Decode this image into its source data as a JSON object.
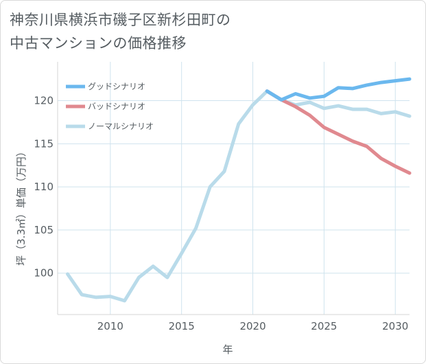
{
  "title": {
    "line1": "神奈川県横浜市磯子区新杉田町の",
    "line2": "中古マンションの価格推移"
  },
  "chart_data": {
    "type": "line",
    "xlabel": "年",
    "ylabel": "坪（3.3㎡）単価（万円）",
    "xlim": [
      2006.3,
      2031
    ],
    "ylim": [
      95.2,
      124.5
    ],
    "x_ticks": [
      2010,
      2015,
      2020,
      2025,
      2030
    ],
    "y_ticks": [
      100,
      105,
      110,
      115,
      120
    ],
    "grid": true,
    "legend_position": "top-left",
    "series": [
      {
        "name": "グッドシナリオ",
        "color": "#6bb8ee",
        "x": [
          2021,
          2022,
          2023,
          2024,
          2025,
          2026,
          2027,
          2028,
          2029,
          2030,
          2031
        ],
        "values": [
          121.1,
          120.1,
          120.8,
          120.3,
          120.5,
          121.5,
          121.4,
          121.8,
          122.1,
          122.3,
          122.5
        ]
      },
      {
        "name": "バッドシナリオ",
        "color": "#e0898f",
        "x": [
          2021,
          2022,
          2023,
          2024,
          2025,
          2026,
          2027,
          2028,
          2029,
          2030,
          2031
        ],
        "values": [
          121.1,
          120.1,
          119.3,
          118.3,
          116.9,
          116.1,
          115.3,
          114.7,
          113.3,
          112.4,
          111.6
        ]
      },
      {
        "name": "ノーマルシナリオ",
        "color": "#b9dbea",
        "x": [
          2007,
          2008,
          2009,
          2010,
          2011,
          2012,
          2013,
          2014,
          2015,
          2016,
          2017,
          2018,
          2019,
          2020,
          2021,
          2022,
          2023,
          2024,
          2025,
          2026,
          2027,
          2028,
          2029,
          2030,
          2031
        ],
        "values": [
          99.9,
          97.5,
          97.2,
          97.3,
          96.8,
          99.5,
          100.8,
          99.5,
          102.3,
          105.2,
          110.0,
          111.8,
          117.3,
          119.5,
          121.1,
          120.1,
          119.5,
          119.8,
          119.1,
          119.4,
          119.0,
          119.0,
          118.5,
          118.7,
          118.2
        ]
      }
    ]
  }
}
